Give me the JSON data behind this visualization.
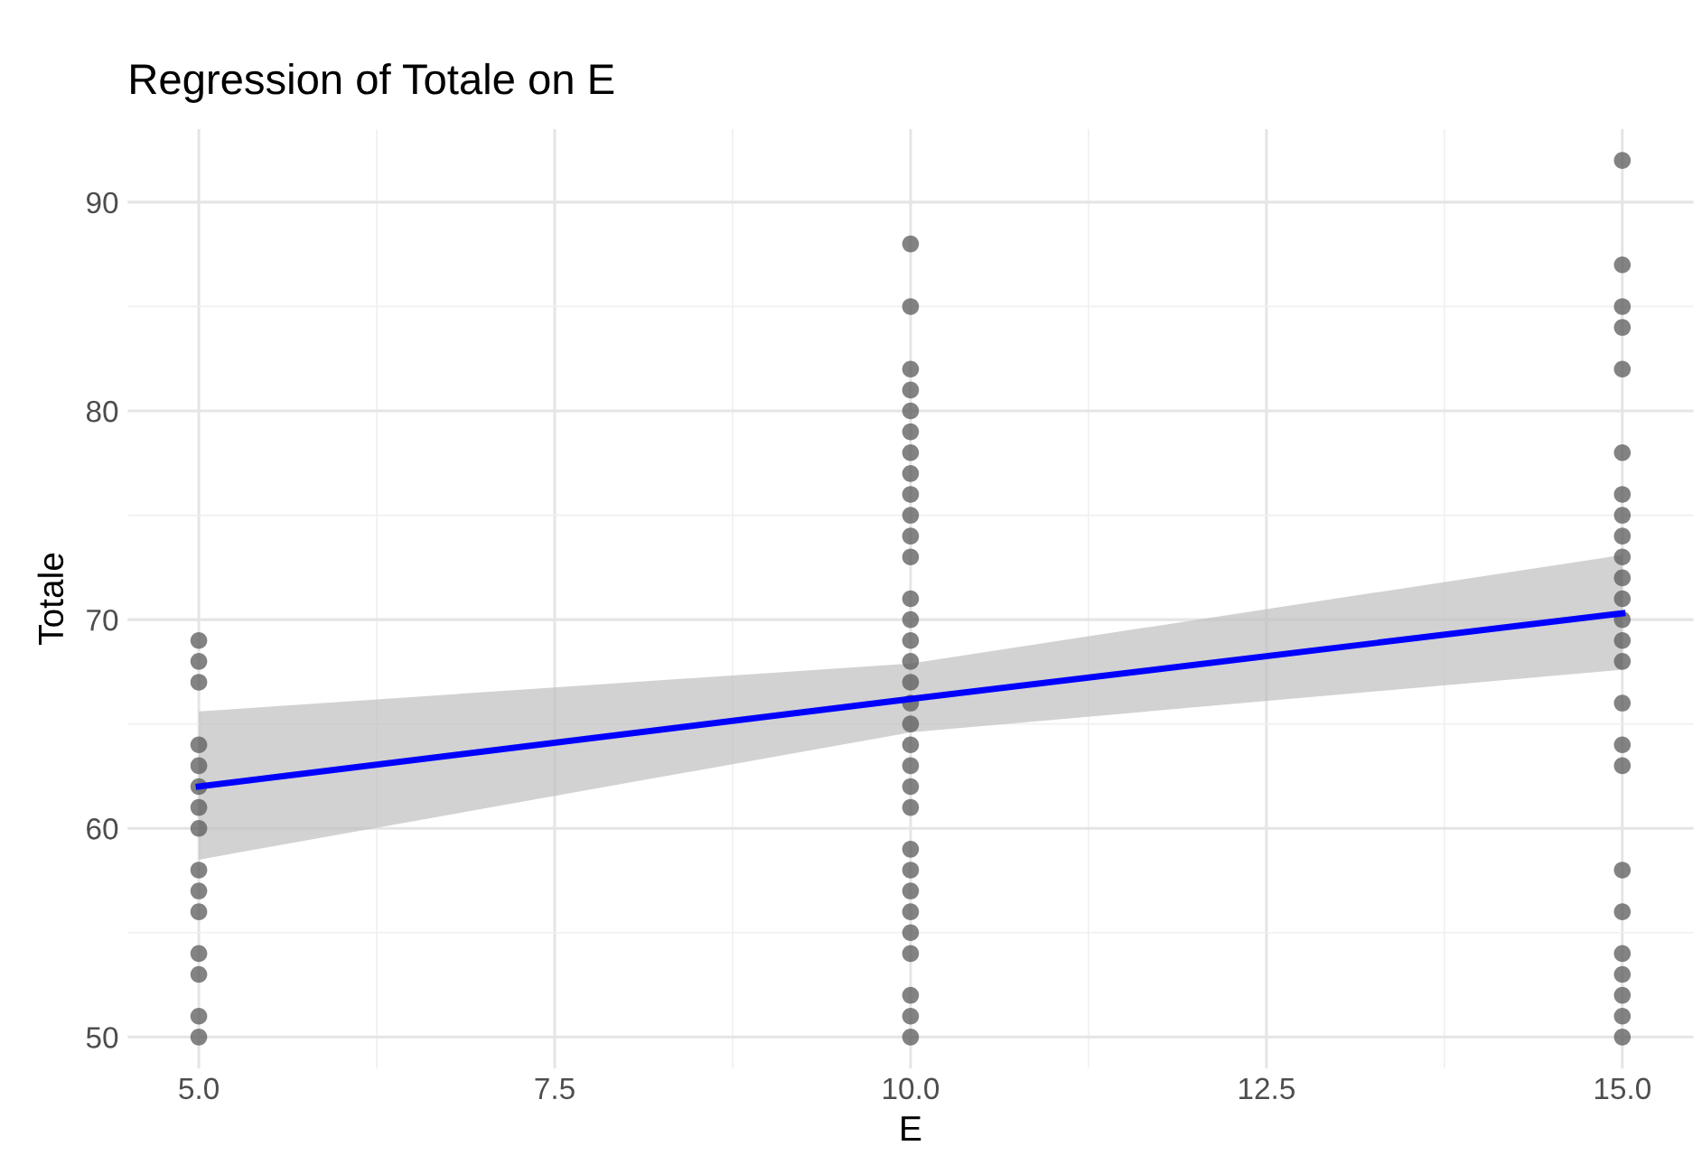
{
  "chart_data": {
    "type": "scatter",
    "title": "Regression of Totale on E",
    "xlabel": "E",
    "ylabel": "Totale",
    "series": [
      {
        "color": "#5a5a5a",
        "marker": "circle",
        "x": [
          5,
          5,
          5,
          5,
          5,
          5,
          5,
          5,
          5,
          5,
          5,
          5,
          5,
          5,
          5,
          10,
          10,
          10,
          10,
          10,
          10,
          10,
          10,
          10,
          10,
          10,
          10,
          10,
          10,
          10,
          10,
          10,
          10,
          10,
          10,
          10,
          10,
          10,
          10,
          10,
          10,
          10,
          10,
          10,
          10,
          10,
          10,
          15,
          15,
          15,
          15,
          15,
          15,
          15,
          15,
          15,
          15,
          15,
          15,
          15,
          15,
          15,
          15,
          15,
          15,
          15,
          15,
          15,
          15,
          15,
          15,
          15
        ],
        "values": [
          69,
          68,
          67,
          64,
          63,
          62,
          61,
          60,
          58,
          57,
          56,
          54,
          53,
          51,
          50,
          88,
          85,
          82,
          81,
          80,
          79,
          78,
          77,
          76,
          75,
          74,
          73,
          71,
          70,
          69,
          68,
          67,
          66,
          65,
          64,
          63,
          62,
          61,
          59,
          58,
          57,
          56,
          55,
          54,
          52,
          51,
          50,
          92,
          87,
          85,
          84,
          82,
          78,
          76,
          75,
          74,
          73,
          72,
          71,
          70,
          69,
          68,
          66,
          64,
          63,
          58,
          56,
          54,
          53,
          52,
          51,
          50
        ]
      },
      {
        "type": "line",
        "color": "#0000ff",
        "x": [
          5,
          10,
          15
        ],
        "values": [
          62,
          66.2,
          70.3
        ],
        "lower": [
          58.5,
          64.6,
          67.6
        ],
        "upper": [
          65.6,
          67.9,
          73.1
        ]
      }
    ],
    "xlim": [
      4.5,
      15.5
    ],
    "xticks": [
      {
        "value": 5,
        "label": "5.0"
      },
      {
        "value": 7.5,
        "label": "7.5"
      },
      {
        "value": 10,
        "label": "10.0"
      },
      {
        "value": 12.5,
        "label": "12.5"
      },
      {
        "value": 15,
        "label": "15.0"
      }
    ],
    "ylim": [
      48.5,
      93.5
    ],
    "yticks": [
      50,
      60,
      70,
      80,
      90
    ],
    "grid": true,
    "line_style": "solid"
  }
}
